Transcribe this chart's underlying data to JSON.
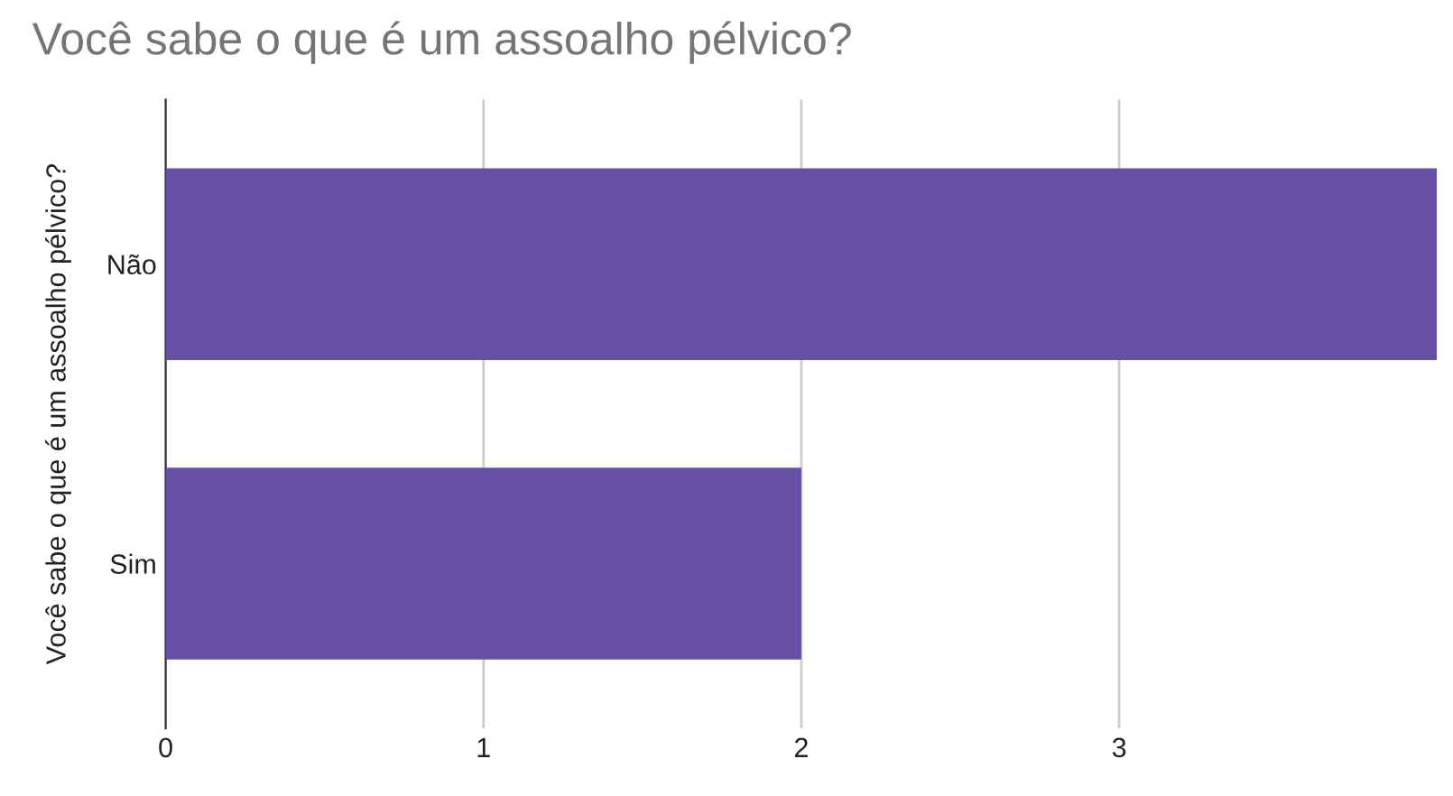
{
  "chart_data": {
    "type": "bar",
    "orientation": "horizontal",
    "title": "Você sabe o que é um assoalho pélvico?",
    "ylabel": "Você sabe o que é um assoalho pélvico?",
    "categories": [
      "Não",
      "Sim"
    ],
    "values": [
      4,
      2
    ],
    "color": "#674ea7",
    "xlim": [
      0,
      4
    ],
    "xticks": [
      0,
      1,
      2,
      3
    ],
    "grid": "x",
    "legend": false
  }
}
